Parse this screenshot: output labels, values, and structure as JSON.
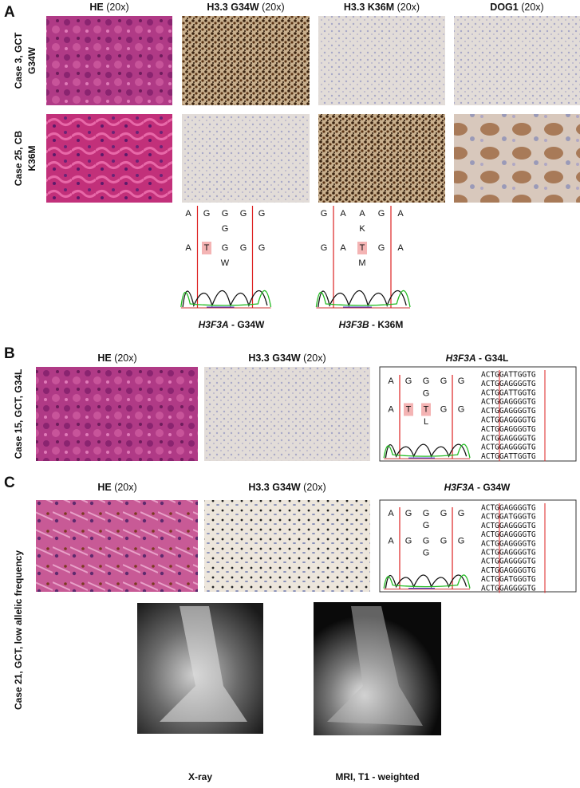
{
  "panel_a": {
    "label": "A",
    "columns": [
      {
        "stain": "HE",
        "magnification": "(20x)"
      },
      {
        "stain": "H3.3 G34W",
        "magnification": "(20x)"
      },
      {
        "stain": "H3.3 K36M",
        "magnification": "(20x)"
      },
      {
        "stain": "DOG1",
        "magnification": "(20x)"
      }
    ],
    "rows": [
      [
        "Case 3, GCT",
        "G34W"
      ],
      [
        "Case 25, CB",
        "K36M"
      ]
    ],
    "traces": [
      {
        "reference": [
          "A",
          "G",
          "G",
          "G",
          "G"
        ],
        "reference_alt": "G",
        "sample": [
          "A",
          "T",
          "G",
          "G",
          "G"
        ],
        "sample_alt": "W",
        "highlight": [
          1
        ],
        "gene": "H3F3A",
        "change": "- G34W"
      },
      {
        "reference": [
          "G",
          "A",
          "A",
          "G",
          "A"
        ],
        "reference_alt": "K",
        "sample": [
          "G",
          "A",
          "T",
          "G",
          "A"
        ],
        "sample_alt": "M",
        "highlight": [
          2
        ],
        "gene": "H3F3B",
        "change": "- K36M"
      }
    ]
  },
  "panel_b": {
    "label": "B",
    "case": "Case 15, GCT, G34L",
    "columns": [
      {
        "stain": "HE",
        "magnification": "(20x)"
      },
      {
        "stain": "H3.3 G34W",
        "magnification": "(20x)"
      }
    ],
    "trace": {
      "gene": "H3F3A",
      "change": "- G34L",
      "reference": [
        "A",
        "G",
        "G",
        "G",
        "G"
      ],
      "reference_alt": "G",
      "sample": [
        "A",
        "T",
        "T",
        "G",
        "G"
      ],
      "sample_alt": "L",
      "highlight": [
        1,
        2
      ],
      "reads": [
        {
          "text": "ACTGGATTGGTG",
          "color": "#d42020"
        },
        {
          "text": "ACTGGAGGGGTG",
          "color": "#22aa22"
        },
        {
          "text": "ACTGGATTGGTG",
          "color": "#d42020"
        },
        {
          "text": "ACTGGAGGGGTG",
          "color": "#d42020"
        },
        {
          "text": "ACTGGAGGGGTG",
          "color": "#d42020"
        },
        {
          "text": "ACTGGAGGGGTG",
          "color": "#d42020"
        },
        {
          "text": "ACTGGAGGGGTG",
          "color": "#d42020"
        },
        {
          "text": "ACTGGAGGGGTG",
          "color": "#22aa22"
        },
        {
          "text": "ACTGGAGGGGTG",
          "color": "#22aa22"
        },
        {
          "text": "ACTGGATTGGTG",
          "color": "#22aa22"
        }
      ]
    }
  },
  "panel_c": {
    "label": "C",
    "case": "Case 21, GCT, low allelic frequency",
    "columns": [
      {
        "stain": "HE",
        "magnification": "(20x)"
      },
      {
        "stain": "H3.3 G34W",
        "magnification": "(20x)"
      }
    ],
    "trace": {
      "gene": "H3F3A",
      "change": "- G34W",
      "reference": [
        "A",
        "G",
        "G",
        "G",
        "G"
      ],
      "reference_alt": "G",
      "sample": [
        "A",
        "G",
        "G",
        "G",
        "G"
      ],
      "sample_alt": "G",
      "highlight": [],
      "reads": [
        {
          "text": "ACTGGAGGGGTG",
          "color": "#d42020"
        },
        {
          "text": "ACTGGATGGGTG",
          "color": "#d42020"
        },
        {
          "text": "ACTGGAGGGGTG",
          "color": "#22aa22"
        },
        {
          "text": "ACTGGAGGGGTG",
          "color": "#22aa22"
        },
        {
          "text": "ACTGGAGGGGTG",
          "color": "#22aa22"
        },
        {
          "text": "ACTGGAGGGGTG",
          "color": "#d42020"
        },
        {
          "text": "ACTGGAGGGGTG",
          "color": "#22aa22"
        },
        {
          "text": "ACTGGAGGGGTG",
          "color": "#d42020"
        },
        {
          "text": "ACTGGATGGGTG",
          "color": "#d42020"
        },
        {
          "text": "ACTGGAGGGGTG",
          "color": "#22aa22"
        }
      ]
    },
    "imaging": [
      "X-ray",
      "MRI, T1 - weighted"
    ]
  }
}
